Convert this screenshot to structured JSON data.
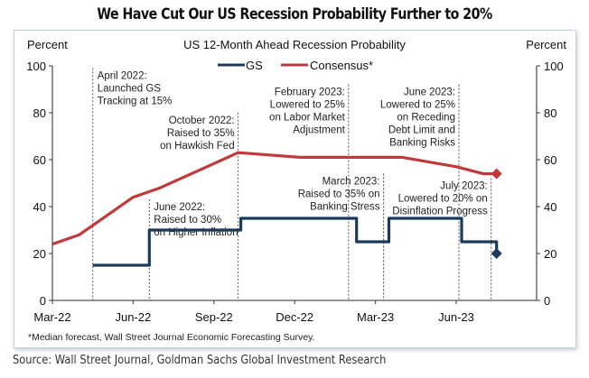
{
  "page_title": "We Have Cut Our US Recession Probability Further to 20%",
  "source": "Source: Wall Street Journal, Goldman Sachs Global Investment Research",
  "footnote": "*Median  forecast, Wall Street Journal Economic  Forecasting Survey.",
  "colors": {
    "gs": "#1b3a5c",
    "consensus": "#c0393b",
    "axis": "#555555",
    "annotation_line": "#555555"
  },
  "chart_data": {
    "type": "line",
    "title": "US 12-Month  Ahead  Recession Probability",
    "ylabel_left": "Percent",
    "ylabel_right": "Percent",
    "xlabel": "",
    "ylim": [
      0,
      100
    ],
    "yticks": [
      0,
      20,
      40,
      60,
      80,
      100
    ],
    "x_range_months": [
      0,
      18
    ],
    "xticks": [
      {
        "label": "Mar-22",
        "month": 0
      },
      {
        "label": "Jun-22",
        "month": 3
      },
      {
        "label": "Sep-22",
        "month": 6
      },
      {
        "label": "Dec-22",
        "month": 9
      },
      {
        "label": "Mar-23",
        "month": 12
      },
      {
        "label": "Jun-23",
        "month": 15
      }
    ],
    "legend": {
      "placement": "top-center",
      "entries": [
        "GS",
        "Consensus*"
      ]
    },
    "grid": false,
    "series": [
      {
        "name": "GS",
        "style": "step",
        "points": [
          {
            "month": 1.5,
            "value": 15
          },
          {
            "month": 3.6,
            "value": 15
          },
          {
            "month": 3.6,
            "value": 30
          },
          {
            "month": 7.0,
            "value": 30
          },
          {
            "month": 7.0,
            "value": 35
          },
          {
            "month": 11.3,
            "value": 35
          },
          {
            "month": 11.3,
            "value": 25
          },
          {
            "month": 12.5,
            "value": 25
          },
          {
            "month": 12.5,
            "value": 35
          },
          {
            "month": 15.2,
            "value": 35
          },
          {
            "month": 15.2,
            "value": 25
          },
          {
            "month": 16.5,
            "value": 25
          },
          {
            "month": 16.5,
            "value": 20
          }
        ],
        "end_marker": {
          "month": 16.5,
          "value": 20
        }
      },
      {
        "name": "Consensus*",
        "style": "line",
        "points": [
          {
            "month": 0,
            "value": 24
          },
          {
            "month": 1.0,
            "value": 28
          },
          {
            "month": 1.5,
            "value": 32
          },
          {
            "month": 3.0,
            "value": 44
          },
          {
            "month": 4.0,
            "value": 48
          },
          {
            "month": 6.9,
            "value": 63
          },
          {
            "month": 9.2,
            "value": 61
          },
          {
            "month": 11.0,
            "value": 61
          },
          {
            "month": 13.0,
            "value": 61
          },
          {
            "month": 15.0,
            "value": 57
          },
          {
            "month": 16.0,
            "value": 54
          },
          {
            "month": 16.5,
            "value": 54
          }
        ],
        "end_marker": {
          "month": 16.5,
          "value": 54
        }
      }
    ],
    "annotations": [
      {
        "month": 1.5,
        "lines": [
          "April 2022:",
          "Launched GS",
          "Tracking at 15%"
        ],
        "align": "left",
        "y_top": 96
      },
      {
        "month": 3.6,
        "lines": [
          "June 2022:",
          "Raised to 30%",
          "on Higher Inflation"
        ],
        "align": "left",
        "y_top": 40
      },
      {
        "month": 6.9,
        "lines": [
          "October 2022:",
          "Raised to 35%",
          "on Hawkish Fed"
        ],
        "align": "right",
        "y_top": 77
      },
      {
        "month": 11.0,
        "lines": [
          "February 2023:",
          "Lowered to 25%",
          "on Labor Market",
          "Adjustment"
        ],
        "align": "right",
        "y_top": 89
      },
      {
        "month": 12.3,
        "lines": [
          "March 2023:",
          "Raised to 35% on",
          "Banking Stress"
        ],
        "align": "right",
        "y_top": 51
      },
      {
        "month": 15.1,
        "lines": [
          "June 2023:",
          "Lowered to 25%",
          "on Receding",
          "Debt Limit  and",
          "Banking Risks"
        ],
        "align": "right",
        "y_top": 89
      },
      {
        "month": 16.3,
        "lines": [
          "July 2023:",
          "Lowered to 20% on",
          "Disinflation Progress"
        ],
        "align": "right",
        "y_top": 49
      }
    ]
  }
}
